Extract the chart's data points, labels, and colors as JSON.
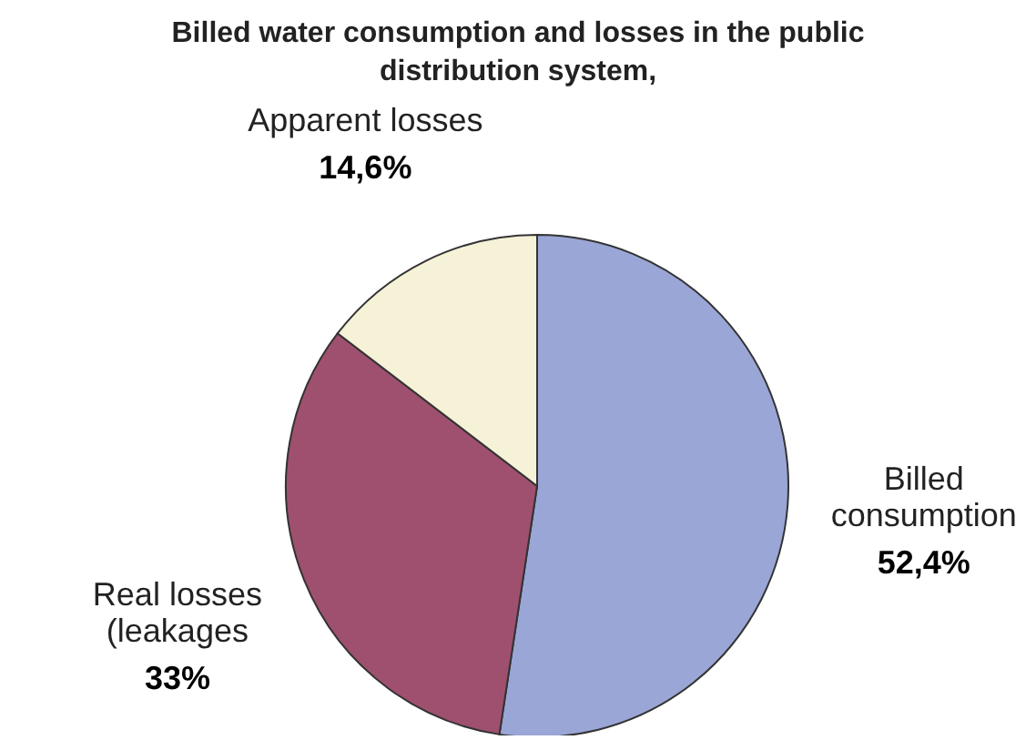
{
  "chart_data": {
    "type": "pie",
    "title": "Billed water consumption and losses in the public distribution system,",
    "categories": [
      "Billed\nconsumption",
      "Real losses\n(leakages",
      "Apparent losses"
    ],
    "values": [
      52.4,
      33,
      14.6
    ],
    "value_labels": [
      "52,4%",
      "33%",
      "14,6%"
    ],
    "colors": [
      "#9aa6d6",
      "#a0506f",
      "#f5f2d8"
    ],
    "legend": false
  }
}
